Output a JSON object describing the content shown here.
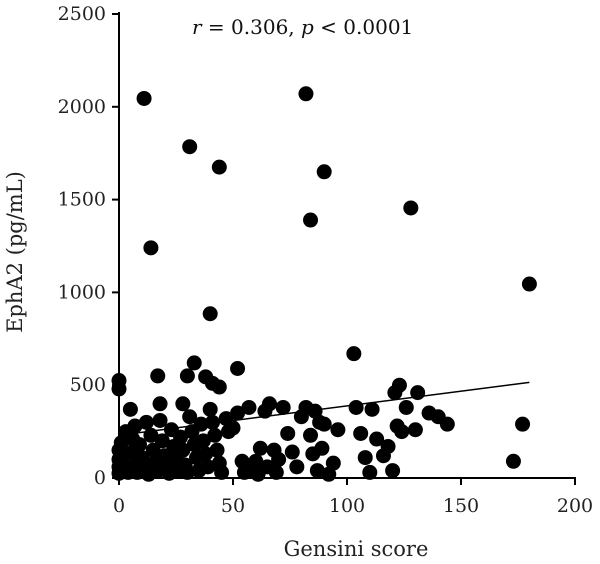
{
  "chart_data": {
    "type": "scatter",
    "annotation": {
      "r_symbol": "r",
      "r_text": " = 0.306, ",
      "p_symbol": "p",
      "p_text": " < 0.0001"
    },
    "xlabel": "Gensini score",
    "ylabel": "EphA2 (pg/mL)",
    "xlim": [
      0,
      200
    ],
    "ylim": [
      0,
      2500
    ],
    "x_ticks": [
      0,
      50,
      100,
      150,
      200
    ],
    "y_ticks": [
      0,
      500,
      1000,
      1500,
      2000,
      2500
    ],
    "grid": false,
    "trendline": {
      "x": [
        0,
        180
      ],
      "y": [
        230,
        515
      ]
    },
    "point_color": "#000000",
    "points": [
      [
        11,
        2045
      ],
      [
        31,
        1785
      ],
      [
        44,
        1675
      ],
      [
        14,
        1240
      ],
      [
        40,
        885
      ],
      [
        82,
        2070
      ],
      [
        90,
        1650
      ],
      [
        84,
        1390
      ],
      [
        128,
        1455
      ],
      [
        180,
        1045
      ],
      [
        103,
        670
      ],
      [
        0,
        525
      ],
      [
        0,
        480
      ],
      [
        5,
        370
      ],
      [
        17,
        550
      ],
      [
        30,
        550
      ],
      [
        33,
        620
      ],
      [
        38,
        545
      ],
      [
        41,
        510
      ],
      [
        44,
        490
      ],
      [
        52,
        590
      ],
      [
        28,
        400
      ],
      [
        18,
        400
      ],
      [
        12,
        300
      ],
      [
        7,
        280
      ],
      [
        3,
        250
      ],
      [
        1,
        190
      ],
      [
        0,
        150
      ],
      [
        0,
        100
      ],
      [
        0,
        60
      ],
      [
        0,
        25
      ],
      [
        2,
        120
      ],
      [
        3,
        60
      ],
      [
        4,
        30
      ],
      [
        6,
        210
      ],
      [
        6,
        140
      ],
      [
        7,
        70
      ],
      [
        8,
        30
      ],
      [
        9,
        180
      ],
      [
        10,
        110
      ],
      [
        12,
        60
      ],
      [
        13,
        20
      ],
      [
        14,
        230
      ],
      [
        15,
        150
      ],
      [
        16,
        90
      ],
      [
        17,
        40
      ],
      [
        18,
        310
      ],
      [
        19,
        200
      ],
      [
        20,
        120
      ],
      [
        21,
        60
      ],
      [
        22,
        25
      ],
      [
        23,
        260
      ],
      [
        24,
        170
      ],
      [
        25,
        100
      ],
      [
        26,
        40
      ],
      [
        27,
        220
      ],
      [
        28,
        150
      ],
      [
        29,
        70
      ],
      [
        30,
        30
      ],
      [
        31,
        330
      ],
      [
        32,
        250
      ],
      [
        33,
        180
      ],
      [
        34,
        110
      ],
      [
        35,
        40
      ],
      [
        36,
        290
      ],
      [
        37,
        200
      ],
      [
        38,
        130
      ],
      [
        39,
        60
      ],
      [
        40,
        370
      ],
      [
        41,
        300
      ],
      [
        42,
        230
      ],
      [
        43,
        150
      ],
      [
        44,
        80
      ],
      [
        45,
        30
      ],
      [
        47,
        320
      ],
      [
        48,
        250
      ],
      [
        50,
        270
      ],
      [
        52,
        350
      ],
      [
        54,
        90
      ],
      [
        55,
        30
      ],
      [
        57,
        380
      ],
      [
        58,
        40
      ],
      [
        60,
        90
      ],
      [
        61,
        20
      ],
      [
        62,
        160
      ],
      [
        64,
        360
      ],
      [
        65,
        60
      ],
      [
        66,
        400
      ],
      [
        68,
        150
      ],
      [
        69,
        30
      ],
      [
        70,
        100
      ],
      [
        72,
        380
      ],
      [
        74,
        240
      ],
      [
        76,
        140
      ],
      [
        78,
        60
      ],
      [
        80,
        330
      ],
      [
        82,
        380
      ],
      [
        84,
        230
      ],
      [
        85,
        130
      ],
      [
        86,
        360
      ],
      [
        87,
        40
      ],
      [
        88,
        300
      ],
      [
        89,
        160
      ],
      [
        90,
        290
      ],
      [
        92,
        20
      ],
      [
        94,
        80
      ],
      [
        96,
        260
      ],
      [
        104,
        380
      ],
      [
        106,
        240
      ],
      [
        108,
        110
      ],
      [
        110,
        30
      ],
      [
        111,
        370
      ],
      [
        113,
        210
      ],
      [
        116,
        120
      ],
      [
        118,
        170
      ],
      [
        120,
        40
      ],
      [
        121,
        460
      ],
      [
        122,
        280
      ],
      [
        123,
        500
      ],
      [
        124,
        250
      ],
      [
        126,
        380
      ],
      [
        130,
        260
      ],
      [
        131,
        460
      ],
      [
        136,
        350
      ],
      [
        140,
        330
      ],
      [
        144,
        290
      ],
      [
        173,
        90
      ],
      [
        177,
        290
      ]
    ]
  }
}
